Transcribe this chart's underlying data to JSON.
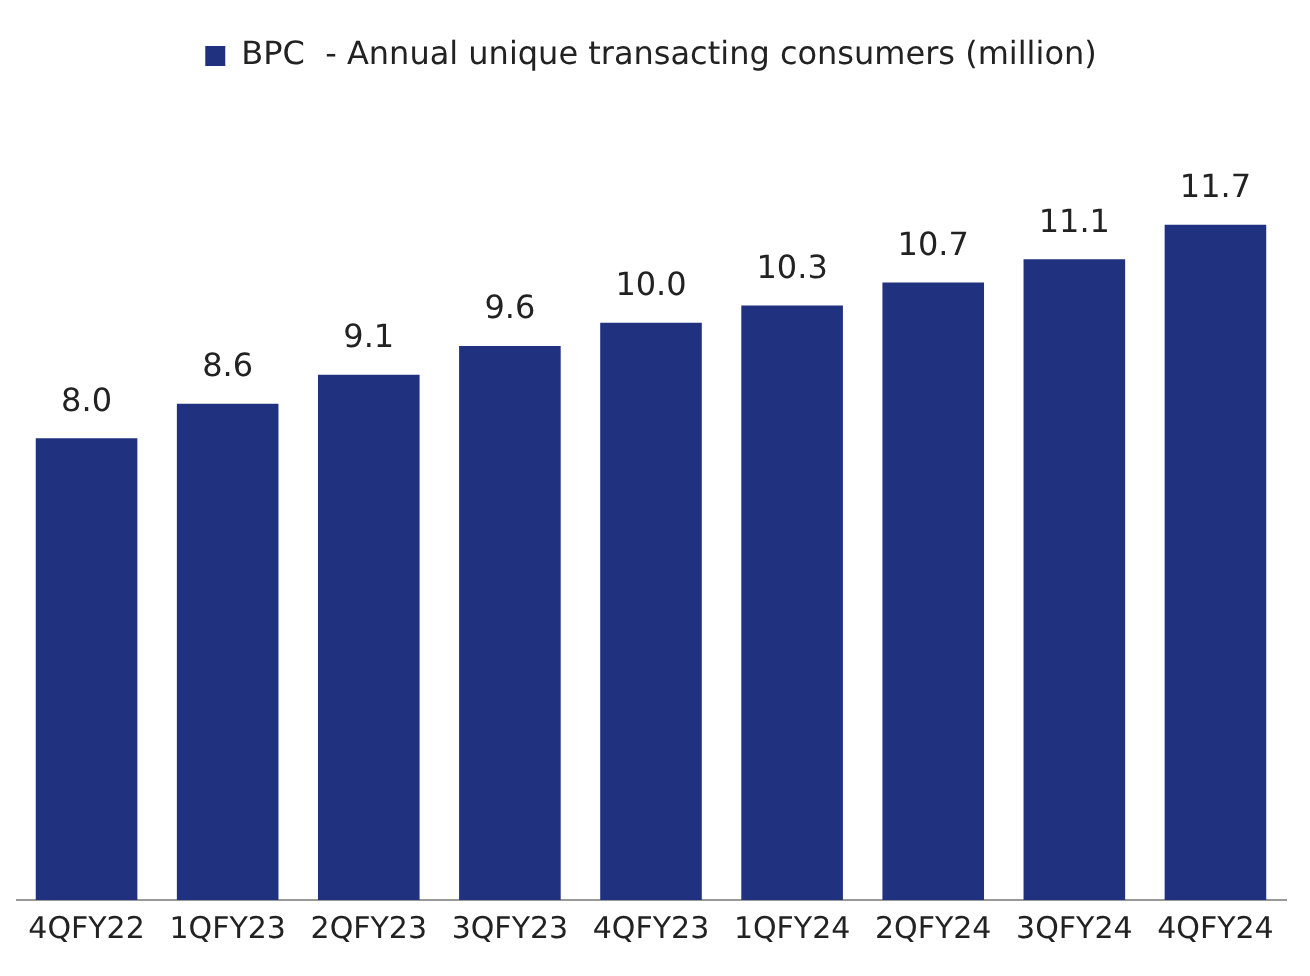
{
  "chart_data": {
    "type": "bar",
    "categories": [
      "4QFY22",
      "1QFY23",
      "2QFY23",
      "3QFY23",
      "4QFY23",
      "1QFY24",
      "2QFY24",
      "3QFY24",
      "4QFY24"
    ],
    "series": [
      {
        "name": "BPC  - Annual unique transacting consumers (million)",
        "color": "#1f317f",
        "values": [
          8.0,
          8.6,
          9.1,
          9.6,
          10.0,
          10.3,
          10.7,
          11.1,
          11.7
        ],
        "value_labels": [
          "8.0",
          "8.6",
          "9.1",
          "9.6",
          "10.0",
          "10.3",
          "10.7",
          "11.1",
          "11.7"
        ]
      }
    ],
    "legend": "top",
    "grid": false
  }
}
